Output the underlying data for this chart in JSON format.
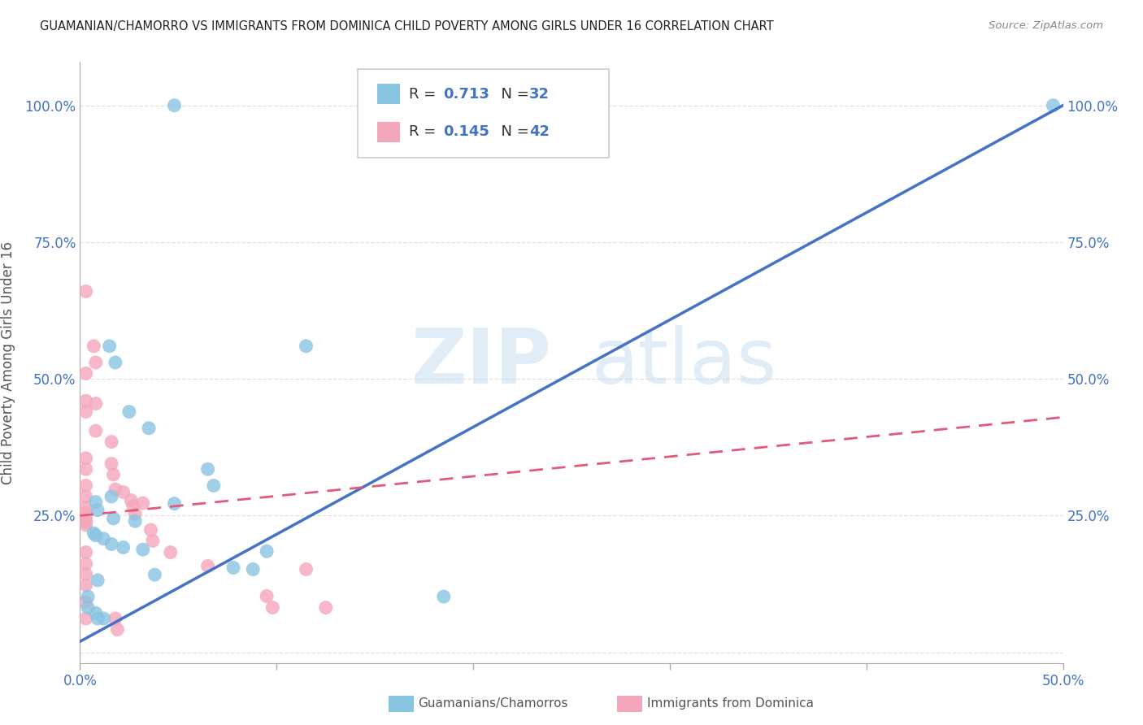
{
  "title": "GUAMANIAN/CHAMORRO VS IMMIGRANTS FROM DOMINICA CHILD POVERTY AMONG GIRLS UNDER 16 CORRELATION CHART",
  "source": "Source: ZipAtlas.com",
  "ylabel": "Child Poverty Among Girls Under 16",
  "xlim": [
    0.0,
    0.5
  ],
  "ylim": [
    -0.02,
    1.08
  ],
  "xticks": [
    0.0,
    0.1,
    0.2,
    0.3,
    0.4,
    0.5
  ],
  "yticks": [
    0.0,
    0.25,
    0.5,
    0.75,
    1.0
  ],
  "xticklabels": [
    "0.0%",
    "",
    "",
    "",
    "",
    "50.0%"
  ],
  "yticklabels": [
    "",
    "25.0%",
    "50.0%",
    "75.0%",
    "100.0%"
  ],
  "blue_color": "#89c4e1",
  "pink_color": "#f4a7bb",
  "blue_line_color": "#4472c4",
  "pink_line_color": "#e05a7a",
  "R_blue": 0.713,
  "N_blue": 32,
  "R_pink": 0.145,
  "N_pink": 42,
  "blue_scatter_x": [
    0.048,
    0.495,
    0.015,
    0.018,
    0.025,
    0.035,
    0.016,
    0.008,
    0.009,
    0.017,
    0.028,
    0.007,
    0.008,
    0.012,
    0.016,
    0.022,
    0.032,
    0.115,
    0.065,
    0.068,
    0.078,
    0.088,
    0.009,
    0.004,
    0.004,
    0.008,
    0.009,
    0.012,
    0.185,
    0.095,
    0.048,
    0.038
  ],
  "blue_scatter_y": [
    1.0,
    1.0,
    0.56,
    0.53,
    0.44,
    0.41,
    0.285,
    0.275,
    0.26,
    0.245,
    0.24,
    0.218,
    0.214,
    0.208,
    0.198,
    0.192,
    0.188,
    0.56,
    0.335,
    0.305,
    0.155,
    0.152,
    0.132,
    0.102,
    0.082,
    0.072,
    0.062,
    0.062,
    0.102,
    0.185,
    0.272,
    0.142
  ],
  "pink_scatter_x": [
    0.003,
    0.007,
    0.008,
    0.003,
    0.003,
    0.003,
    0.003,
    0.003,
    0.003,
    0.003,
    0.003,
    0.003,
    0.003,
    0.003,
    0.003,
    0.008,
    0.008,
    0.016,
    0.016,
    0.017,
    0.018,
    0.022,
    0.026,
    0.027,
    0.028,
    0.032,
    0.036,
    0.037,
    0.046,
    0.065,
    0.095,
    0.098,
    0.115,
    0.125,
    0.003,
    0.003,
    0.003,
    0.003,
    0.003,
    0.003,
    0.018,
    0.019
  ],
  "pink_scatter_y": [
    0.66,
    0.56,
    0.53,
    0.51,
    0.46,
    0.44,
    0.355,
    0.335,
    0.305,
    0.285,
    0.265,
    0.255,
    0.245,
    0.238,
    0.233,
    0.455,
    0.405,
    0.385,
    0.345,
    0.325,
    0.298,
    0.293,
    0.278,
    0.268,
    0.253,
    0.273,
    0.224,
    0.204,
    0.183,
    0.158,
    0.103,
    0.082,
    0.152,
    0.082,
    0.183,
    0.162,
    0.143,
    0.123,
    0.092,
    0.062,
    0.062,
    0.042
  ],
  "blue_regline_x": [
    0.0,
    0.5
  ],
  "blue_regline_y": [
    0.02,
    1.0
  ],
  "pink_regline_x": [
    0.0,
    0.5
  ],
  "pink_regline_y": [
    0.25,
    0.43
  ],
  "watermark_zip": "ZIP",
  "watermark_atlas": "atlas",
  "background_color": "#ffffff",
  "grid_color": "#e0e0e0",
  "tick_color": "#4472c4",
  "axis_label_color": "#555555",
  "title_color": "#222222"
}
